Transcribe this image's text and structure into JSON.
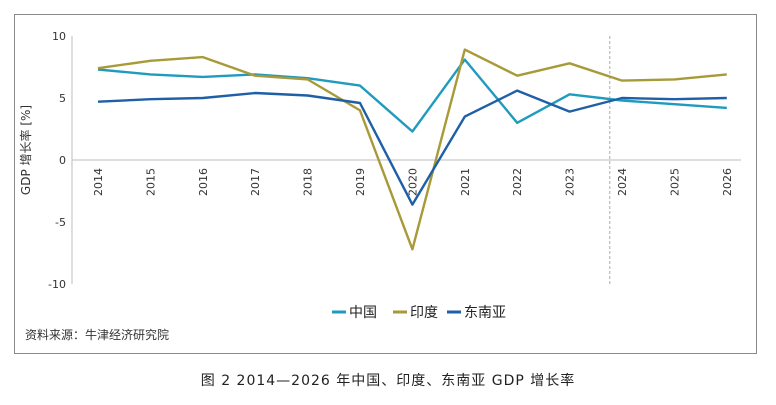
{
  "chart_data": {
    "type": "line",
    "categories": [
      "2014",
      "2015",
      "2016",
      "2017",
      "2018",
      "2019",
      "2020",
      "2021",
      "2022",
      "2023",
      "2024",
      "2025",
      "2026"
    ],
    "series": [
      {
        "name": "中国",
        "color": "#1f9bbf",
        "values": [
          7.3,
          6.9,
          6.7,
          6.9,
          6.6,
          6.0,
          2.3,
          8.1,
          3.0,
          5.3,
          4.8,
          4.5,
          4.2
        ]
      },
      {
        "name": "印度",
        "color": "#a89a38",
        "values": [
          7.4,
          8.0,
          8.3,
          6.8,
          6.5,
          4.0,
          -7.2,
          8.9,
          6.8,
          7.8,
          6.4,
          6.5,
          6.9
        ]
      },
      {
        "name": "东南亚",
        "color": "#1f5fa6",
        "values": [
          4.7,
          4.9,
          5.0,
          5.4,
          5.2,
          4.6,
          -3.6,
          3.5,
          5.6,
          3.9,
          5.0,
          4.9,
          5.0
        ]
      }
    ],
    "yticks": [
      "10",
      "5",
      "0",
      "-5",
      "-10"
    ],
    "ylim": [
      -10,
      10
    ],
    "ylabel": "GDP 增长率 [%]",
    "forecast_divider_after": "2023",
    "legend_position": "bottom-center"
  },
  "source": "资料来源：牛津经济研究院",
  "caption": "图 2  2014—2026 年中国、印度、东南亚 GDP 增长率"
}
